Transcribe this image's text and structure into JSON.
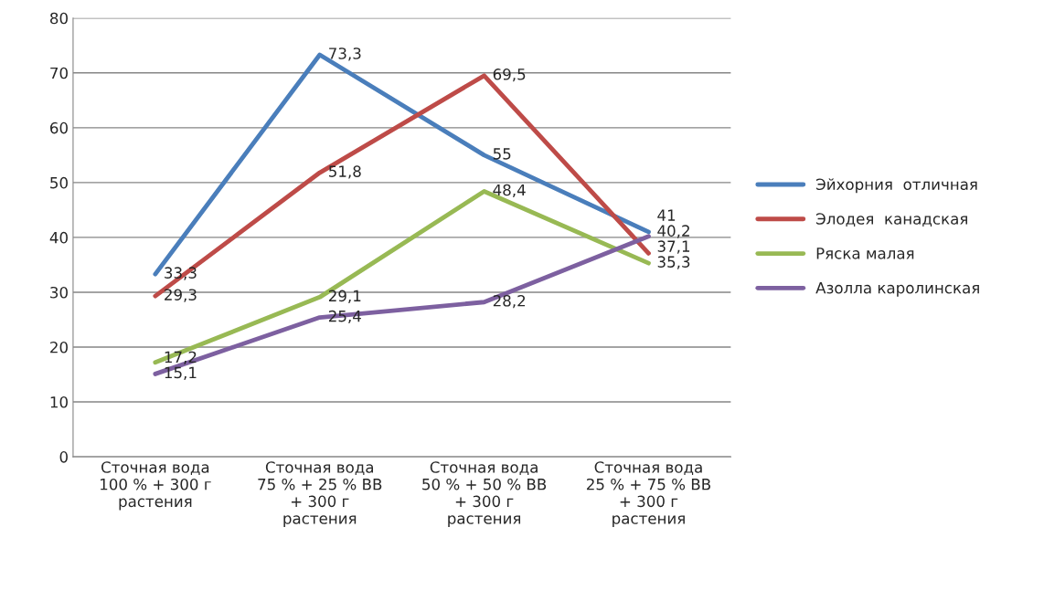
{
  "chart_data": {
    "type": "line",
    "categories": [
      "Сточная вода\n100 % + 300 г\nрастения",
      "Сточная вода\n75 % + 25 % ВВ\n+ 300 г\nрастения",
      "Сточная вода\n50 % + 50 % ВВ\n+ 300 г\nрастения",
      "Сточная вода\n25 % + 75 % ВВ\n+ 300 г\nрастения"
    ],
    "series": [
      {
        "name": "Эйхорния  отличная",
        "color": "#4a7ebb",
        "values": [
          33.3,
          73.3,
          55,
          41
        ],
        "value_labels": [
          "33,3",
          "73,3",
          "55",
          "41"
        ]
      },
      {
        "name": "Элодея  канадская",
        "color": "#be4b48",
        "values": [
          29.3,
          51.8,
          69.5,
          37.1
        ],
        "value_labels": [
          "29,3",
          "51,8",
          "69,5",
          "37,1"
        ]
      },
      {
        "name": "Ряска малая",
        "color": "#98b954",
        "values": [
          17.2,
          29.1,
          48.4,
          35.3
        ],
        "value_labels": [
          "17,2",
          "29,1",
          "48,4",
          "35,3"
        ]
      },
      {
        "name": "Азолла каролинская",
        "color": "#7d60a0",
        "values": [
          15.1,
          25.4,
          28.2,
          40.2
        ],
        "value_labels": [
          "15,1",
          "25,4",
          "28,2",
          "40,2"
        ]
      }
    ],
    "ylim": [
      0,
      80
    ],
    "yticks": [
      0,
      10,
      20,
      30,
      40,
      50,
      60,
      70,
      80
    ],
    "grid": "y",
    "legend": "right",
    "marker": "none",
    "line_style": "solid"
  }
}
